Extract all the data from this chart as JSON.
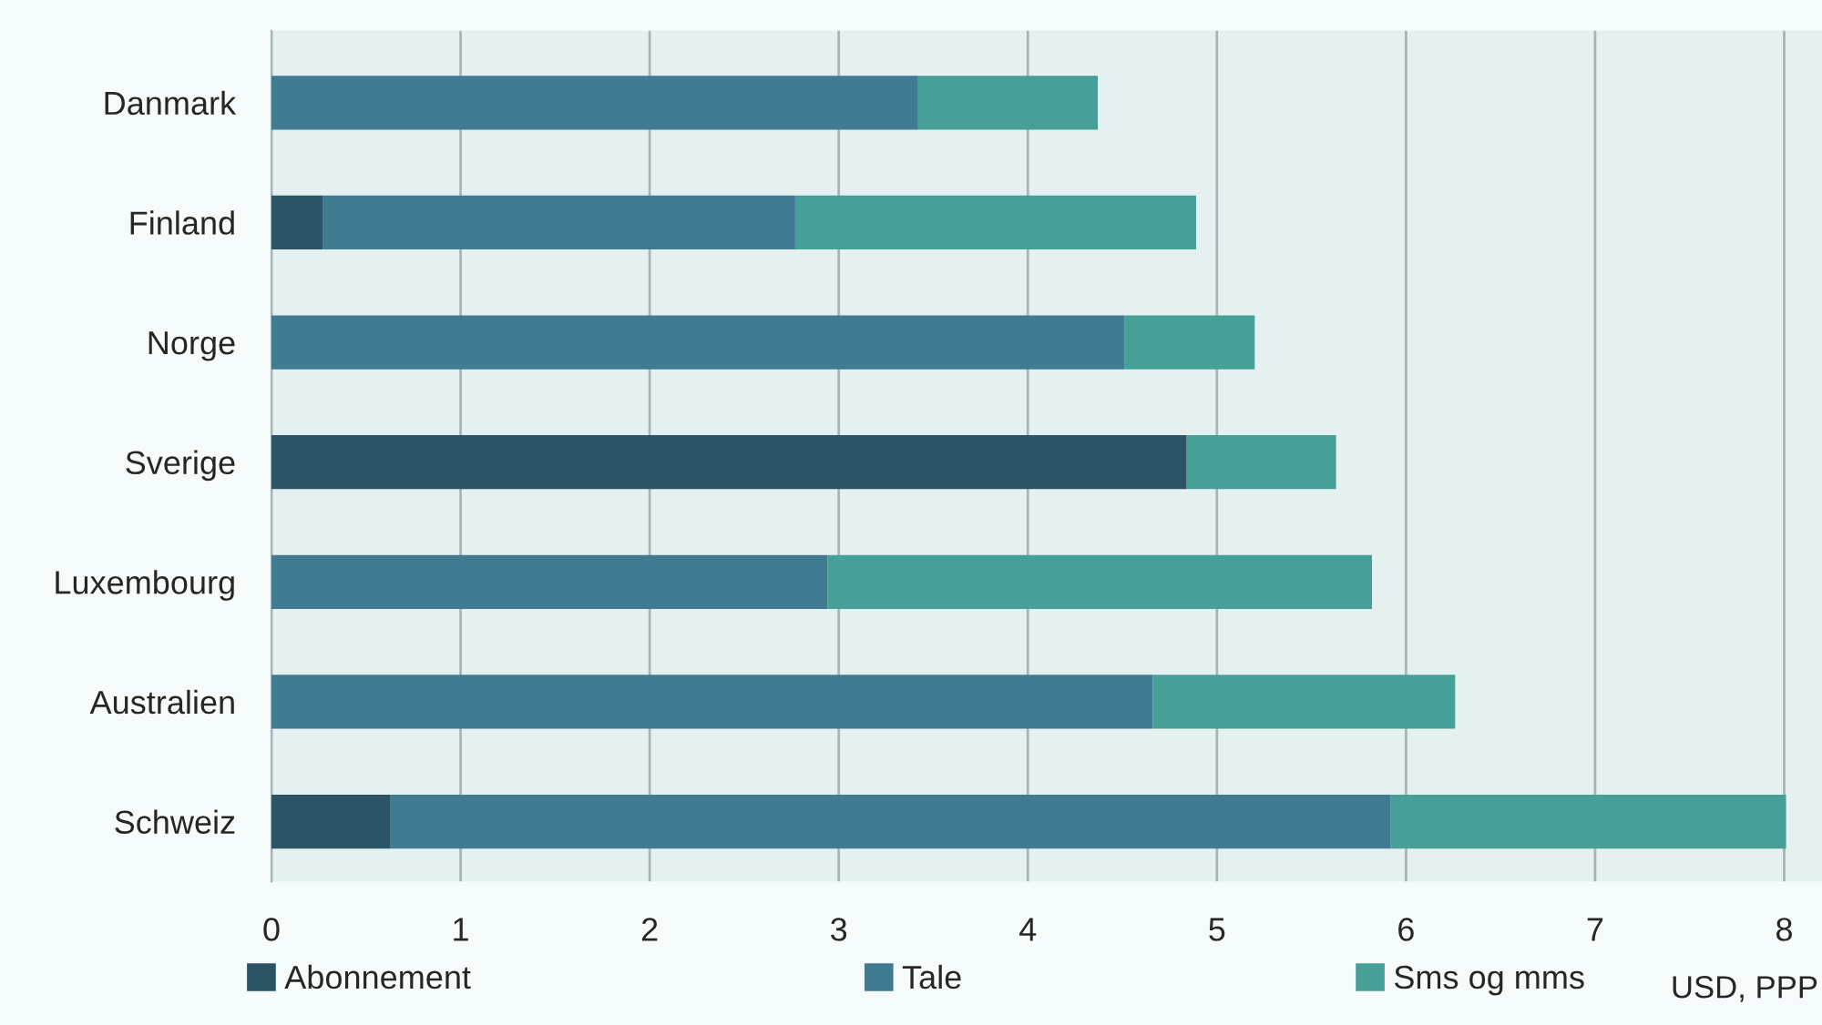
{
  "chart_data": {
    "type": "bar",
    "orientation": "horizontal",
    "stacked": true,
    "categories": [
      "Danmark",
      "Finland",
      "Norge",
      "Sverige",
      "Luxembourg",
      "Australien",
      "Schweiz"
    ],
    "series": [
      {
        "name": "Abonnement",
        "color": "#2b5565",
        "values": [
          0,
          0.27,
          0,
          4.84,
          0,
          0,
          0.63
        ]
      },
      {
        "name": "Tale",
        "color": "#417b92",
        "values": [
          3.42,
          2.5,
          4.51,
          0,
          2.94,
          4.66,
          5.29
        ]
      },
      {
        "name": "Sms og mms",
        "color": "#47a098",
        "values": [
          0.95,
          2.12,
          0.69,
          0.79,
          2.88,
          1.6,
          2.09
        ]
      }
    ],
    "xlim": [
      0,
      8.2
    ],
    "xticks": [
      0,
      1,
      2,
      3,
      4,
      5,
      6,
      7,
      8
    ],
    "xlabel": "USD, PPP",
    "grid": "x",
    "legend": "bottom"
  }
}
